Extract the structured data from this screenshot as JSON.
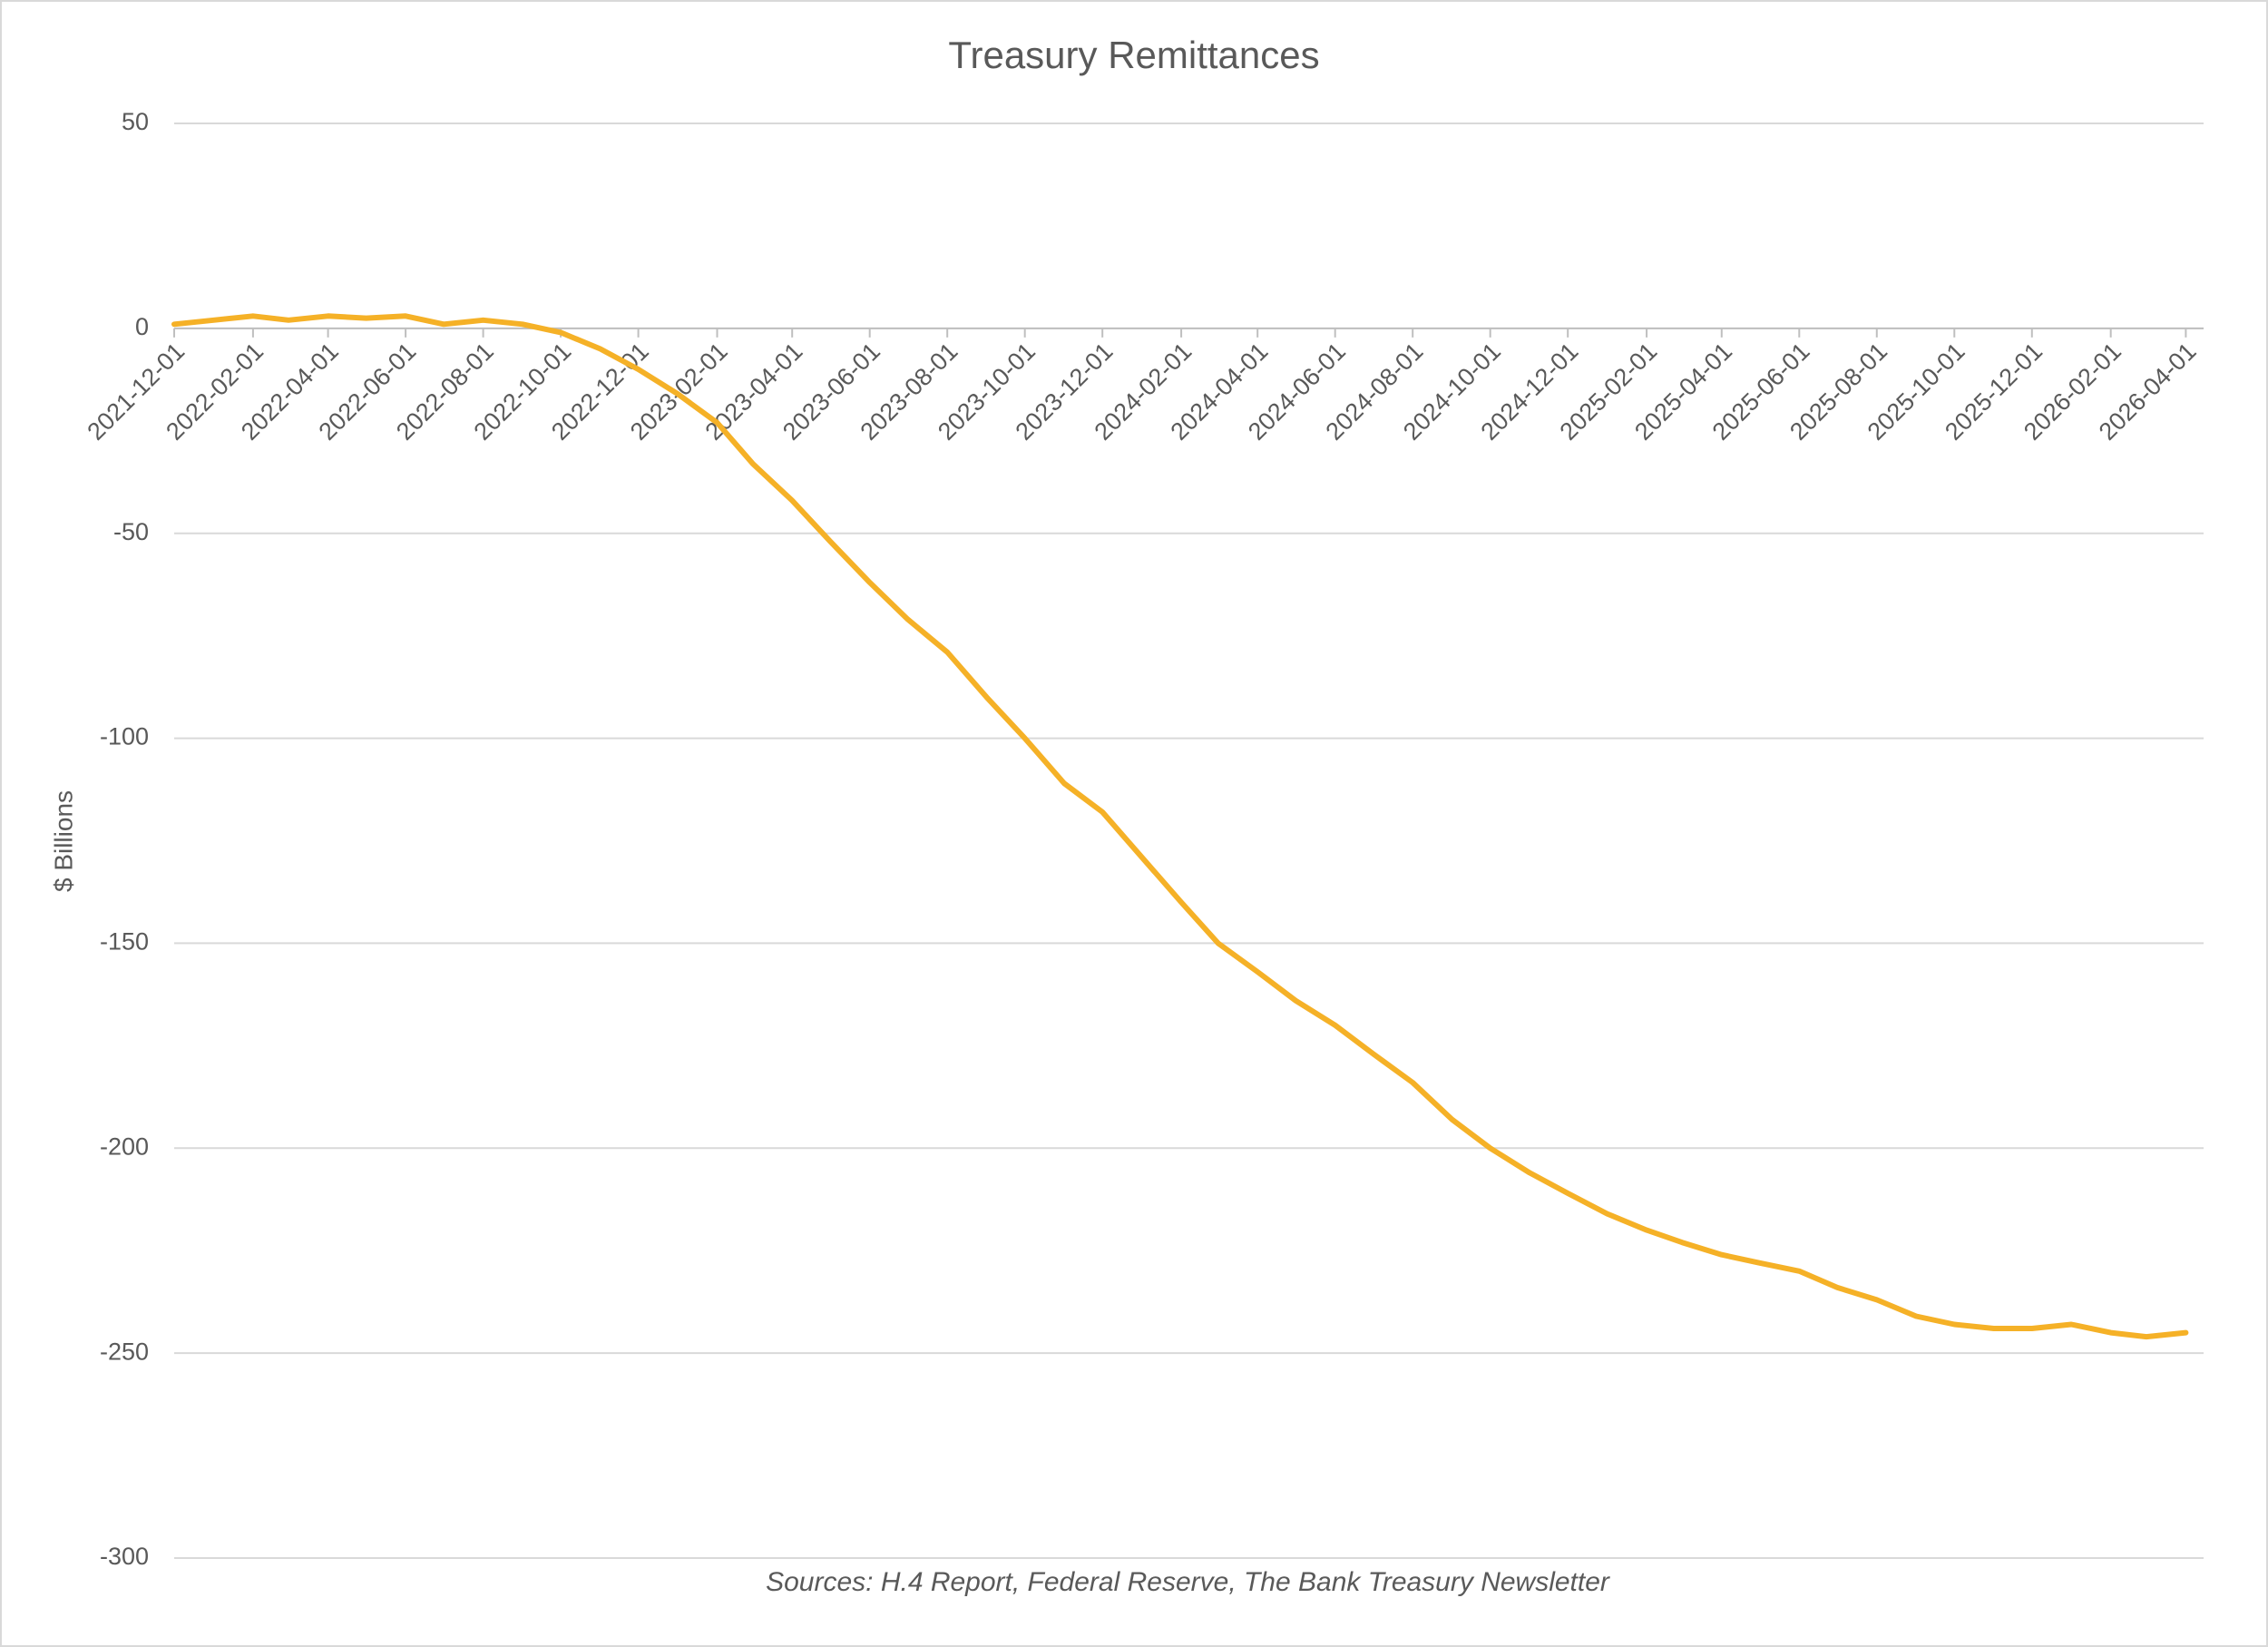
{
  "chart_data": {
    "type": "line",
    "title": "Treasury Remittances",
    "y_label": "$ Billions",
    "annotation": "Sources: H.4 Report, Federal Reserve, The Bank Treasury Newsletter",
    "x": [
      "2021-12-01",
      "2022-01-01",
      "2022-02-01",
      "2022-03-01",
      "2022-04-01",
      "2022-05-01",
      "2022-06-01",
      "2022-07-01",
      "2022-08-01",
      "2022-09-01",
      "2022-10-01",
      "2022-11-01",
      "2022-12-01",
      "2023-01-01",
      "2023-02-01",
      "2023-03-01",
      "2023-04-01",
      "2023-05-01",
      "2023-06-01",
      "2023-07-01",
      "2023-08-01",
      "2023-09-01",
      "2023-10-01",
      "2023-11-01",
      "2023-12-01",
      "2024-01-01",
      "2024-02-01",
      "2024-03-01",
      "2024-04-01",
      "2024-05-01",
      "2024-06-01",
      "2024-07-01",
      "2024-08-01",
      "2024-09-01",
      "2024-10-01",
      "2024-11-01",
      "2024-12-01",
      "2025-01-01",
      "2025-02-01",
      "2025-03-01",
      "2025-04-01",
      "2025-05-01",
      "2025-06-01",
      "2025-07-01",
      "2025-08-01",
      "2025-09-01",
      "2025-10-01",
      "2025-11-01",
      "2025-12-01",
      "2026-01-01",
      "2026-02-01",
      "2026-03-01",
      "2026-04-01"
    ],
    "series": [
      {
        "name": "Treasury Remittances",
        "color": "#f5b127",
        "values": [
          1,
          2,
          3,
          2,
          3,
          2.5,
          3,
          1,
          2,
          1,
          -1,
          -5,
          -10,
          -16,
          -23,
          -33,
          -42,
          -52,
          -62,
          -71,
          -79,
          -90,
          -100,
          -111,
          -118,
          -129,
          -140,
          -150,
          -157,
          -164,
          -170,
          -177,
          -184,
          -193,
          -200,
          -206,
          -211,
          -216,
          -220,
          -223,
          -226,
          -228,
          -230,
          -234,
          -237,
          -241,
          -243,
          -244,
          -244,
          -243,
          -245,
          -246,
          -245
        ]
      }
    ],
    "xlim": [
      "2021-12-01",
      "2026-04-15"
    ],
    "xticks": [
      "2021-12-01",
      "2022-02-01",
      "2022-04-01",
      "2022-06-01",
      "2022-08-01",
      "2022-10-01",
      "2022-12-01",
      "2023-02-01",
      "2023-04-01",
      "2023-06-01",
      "2023-08-01",
      "2023-10-01",
      "2023-12-01",
      "2024-02-01",
      "2024-04-01",
      "2024-06-01",
      "2024-08-01",
      "2024-10-01",
      "2024-12-01",
      "2025-02-01",
      "2025-04-01",
      "2025-06-01",
      "2025-08-01",
      "2025-10-01",
      "2025-12-01",
      "2026-02-01",
      "2026-04-01"
    ],
    "ylim": [
      -300,
      50
    ],
    "yticks": [
      -300,
      -250,
      -200,
      -150,
      -100,
      -50,
      0,
      50
    ],
    "grid": true
  }
}
